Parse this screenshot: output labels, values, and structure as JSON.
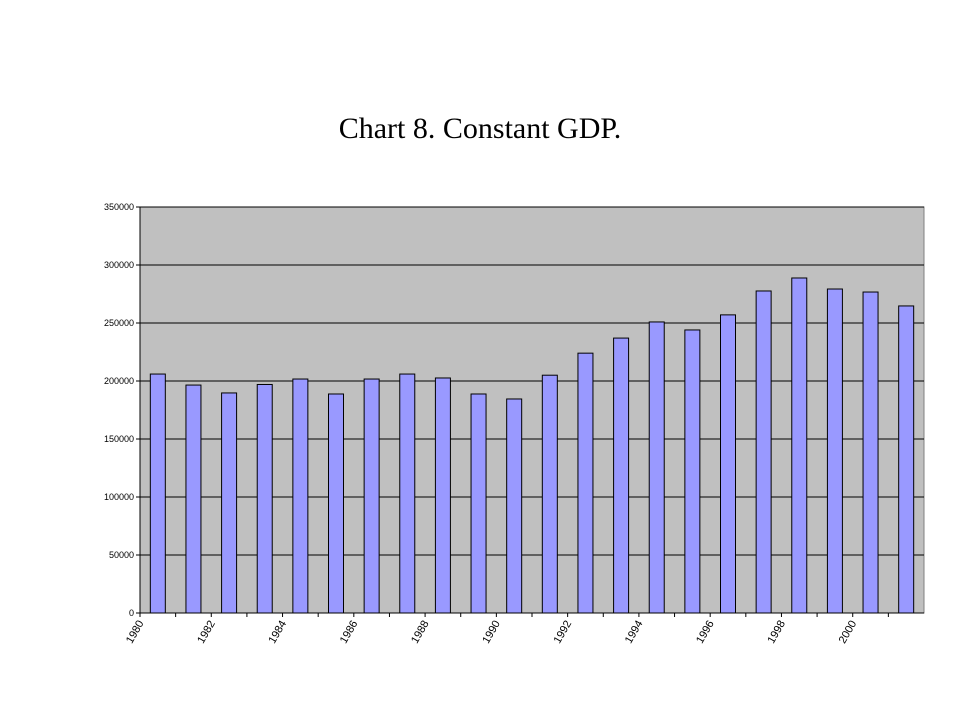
{
  "chart_data": {
    "type": "bar",
    "title": "Chart 8. Constant GDP.",
    "categories": [
      "1980",
      null,
      "1982",
      null,
      "1984",
      null,
      "1986",
      null,
      "1988",
      null,
      "1990",
      null,
      "1992",
      null,
      "1994",
      null,
      "1996",
      null,
      "1998",
      null,
      "2000",
      null
    ],
    "values": [
      206000,
      196500,
      189700,
      197000,
      201700,
      188800,
      201700,
      206000,
      202600,
      188800,
      184500,
      205000,
      224000,
      237000,
      250900,
      244000,
      257000,
      277600,
      288800,
      279300,
      276700,
      264700
    ],
    "color": "#9999ff",
    "ylim": [
      0,
      350000
    ],
    "yticks": [
      0,
      50000,
      100000,
      150000,
      200000,
      250000,
      300000,
      350000
    ],
    "grid": true
  }
}
